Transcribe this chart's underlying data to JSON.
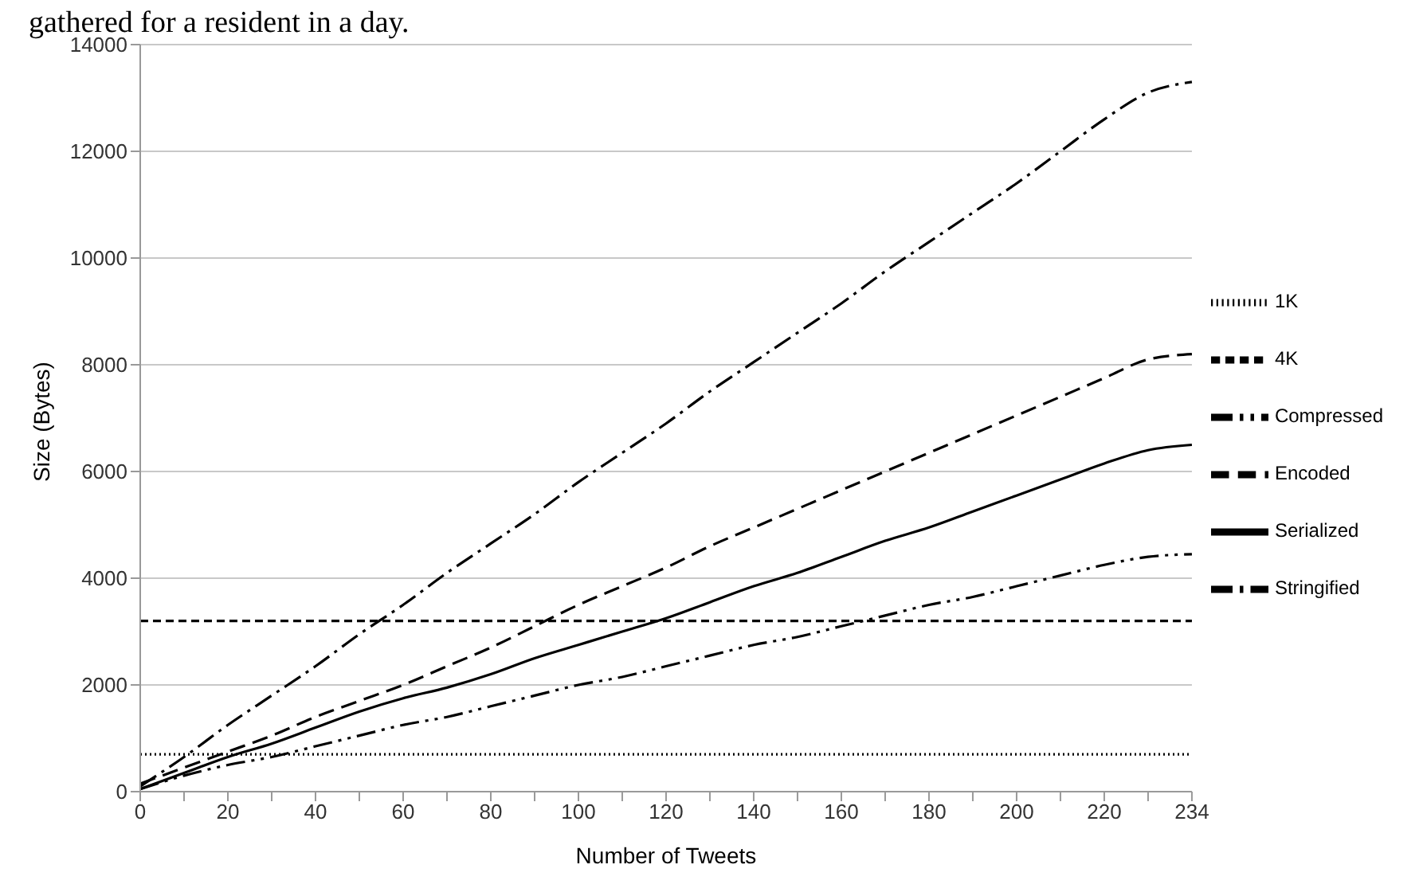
{
  "chart_data": {
    "type": "line",
    "annotations": [
      "gathered for a resident in a day."
    ],
    "xlabel": "Number of Tweets",
    "ylabel": "Size (Bytes)",
    "categories": [
      "0",
      null,
      "20",
      null,
      "40",
      null,
      "60",
      null,
      "80",
      null,
      "100",
      null,
      "120",
      null,
      "140",
      null,
      "160",
      null,
      "180",
      null,
      "200",
      null,
      "220",
      null,
      "234"
    ],
    "series": [
      {
        "name": "Stringified",
        "color": "#000000",
        "line_style": "dashdot",
        "values": [
          100,
          650,
          1250,
          1800,
          2350,
          2950,
          3500,
          4100,
          4650,
          5200,
          5800,
          6350,
          6900,
          7500,
          8050,
          8600,
          9150,
          9750,
          10300,
          10850,
          11400,
          12000,
          12600,
          13100,
          13300
        ]
      },
      {
        "name": "Encoded",
        "color": "#000000",
        "line_style": "longdash",
        "values": [
          150,
          450,
          750,
          1050,
          1400,
          1700,
          2000,
          2350,
          2700,
          3100,
          3500,
          3850,
          4200,
          4600,
          4950,
          5300,
          5650,
          6000,
          6350,
          6700,
          7050,
          7400,
          7750,
          8100,
          8200
        ]
      },
      {
        "name": "Serialized",
        "color": "#000000",
        "line_style": "solid",
        "values": [
          50,
          350,
          650,
          900,
          1200,
          1500,
          1750,
          1950,
          2200,
          2500,
          2750,
          3000,
          3250,
          3550,
          3850,
          4100,
          4400,
          4700,
          4950,
          5250,
          5550,
          5850,
          6150,
          6400,
          6500
        ]
      },
      {
        "name": "Compressed",
        "color": "#000000",
        "line_style": "dashdotdot",
        "values": [
          50,
          300,
          500,
          650,
          850,
          1050,
          1250,
          1400,
          1600,
          1800,
          2000,
          2150,
          2350,
          2550,
          2750,
          2900,
          3100,
          3300,
          3500,
          3650,
          3850,
          4050,
          4250,
          4400,
          4450
        ]
      },
      {
        "name": "1K",
        "color": "#000000",
        "line_style": "dotted",
        "values": [
          700,
          700,
          700,
          700,
          700,
          700,
          700,
          700,
          700,
          700,
          700,
          700,
          700,
          700,
          700,
          700,
          700,
          700,
          700,
          700,
          700,
          700,
          700,
          700,
          700
        ]
      },
      {
        "name": "4K",
        "color": "#000000",
        "line_style": "dashed",
        "values": [
          3200,
          3200,
          3200,
          3200,
          3200,
          3200,
          3200,
          3200,
          3200,
          3200,
          3200,
          3200,
          3200,
          3200,
          3200,
          3200,
          3200,
          3200,
          3200,
          3200,
          3200,
          3200,
          3200,
          3200,
          3200
        ]
      }
    ],
    "ylim": [
      0,
      14000
    ],
    "yticks": [
      0,
      2000,
      4000,
      6000,
      8000,
      10000,
      12000,
      14000
    ],
    "grid": "y",
    "legend": "right",
    "marker": "none"
  }
}
